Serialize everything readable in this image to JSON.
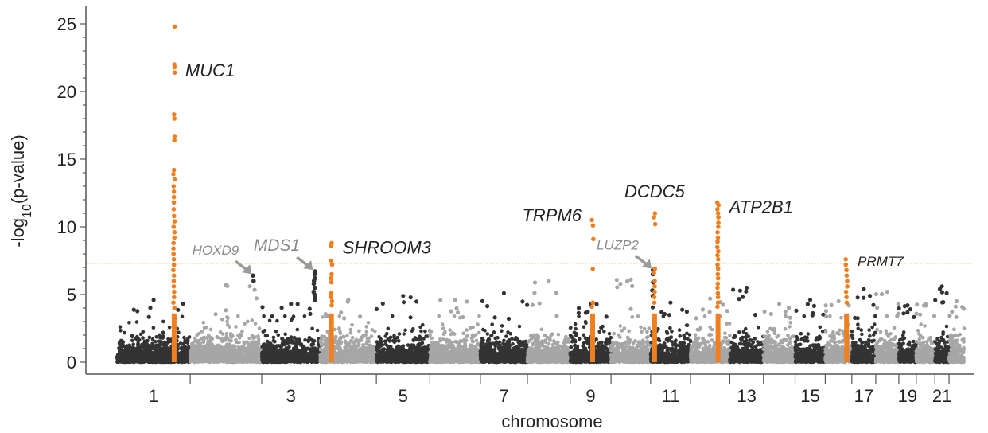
{
  "chart_data": {
    "type": "scatter",
    "subtype": "manhattan",
    "title": "",
    "xlabel": "chromosome",
    "ylabel": "-log10(p-value)",
    "ylabel_parts": {
      "pre": "-log",
      "sub": "10",
      "post": "(p-value)"
    },
    "ylim": [
      0,
      26
    ],
    "yticks": [
      {
        "value": 0,
        "label": "0"
      },
      {
        "value": 5,
        "label": "5"
      },
      {
        "value": 10,
        "label": "10"
      },
      {
        "value": 15,
        "label": "15"
      },
      {
        "value": 20,
        "label": "20"
      },
      {
        "value": 25,
        "label": "25"
      }
    ],
    "significance_threshold": 7.3,
    "grid": false,
    "legend": "none",
    "colors": {
      "dark": "#333333",
      "light": "#a6a6a6",
      "highlight": "#f07f20",
      "label_dark": "#222222",
      "label_gray": "#8c8c8c",
      "threshold": "#f2c98a",
      "axis": "#555555"
    },
    "chromosomes": [
      {
        "chr": 1,
        "label": "1",
        "peak": 4.6
      },
      {
        "chr": 2,
        "label": "",
        "peak": 5.7
      },
      {
        "chr": 3,
        "label": "3",
        "peak": 4.3
      },
      {
        "chr": 4,
        "label": "",
        "peak": 4.6
      },
      {
        "chr": 5,
        "label": "5",
        "peak": 4.9
      },
      {
        "chr": 6,
        "label": "",
        "peak": 4.6
      },
      {
        "chr": 7,
        "label": "7",
        "peak": 5.1
      },
      {
        "chr": 8,
        "label": "",
        "peak": 6.0
      },
      {
        "chr": 9,
        "label": "9",
        "peak": 4.3
      },
      {
        "chr": 10,
        "label": "",
        "peak": 6.1
      },
      {
        "chr": 11,
        "label": "11",
        "peak": 4.4
      },
      {
        "chr": 12,
        "label": "",
        "peak": 4.7
      },
      {
        "chr": 13,
        "label": "13",
        "peak": 5.5
      },
      {
        "chr": 14,
        "label": "",
        "peak": 4.3
      },
      {
        "chr": 15,
        "label": "15",
        "peak": 4.6
      },
      {
        "chr": 16,
        "label": "",
        "peak": 4.5
      },
      {
        "chr": 17,
        "label": "17",
        "peak": 5.4
      },
      {
        "chr": 18,
        "label": "",
        "peak": 5.2
      },
      {
        "chr": 19,
        "label": "19",
        "peak": 4.2
      },
      {
        "chr": 20,
        "label": "",
        "peak": 4.3
      },
      {
        "chr": 21,
        "label": "21",
        "peak": 5.6
      },
      {
        "chr": 22,
        "label": "",
        "peak": 4.5
      }
    ],
    "loci": [
      {
        "gene": "MUC1",
        "chr": 1,
        "pos": 0.78,
        "highlight": true,
        "values": [
          24.8,
          22.0,
          21.8,
          21.4,
          18.3,
          18.0,
          16.7,
          16.4,
          14.2,
          13.9,
          13.5,
          13.0,
          12.6,
          12.2,
          11.8,
          11.3,
          10.8,
          10.4,
          10.0,
          9.6,
          9.2,
          8.8,
          8.4,
          8.0,
          7.6,
          7.2,
          6.8,
          6.4,
          6.0,
          5.6,
          5.2,
          4.8,
          4.4,
          4.0
        ]
      },
      {
        "gene": "HOXD9",
        "chr": 2,
        "pos": 0.88,
        "highlight": false,
        "values": [
          6.4,
          6.0
        ]
      },
      {
        "gene": "MDS1",
        "chr": 3,
        "pos": 0.9,
        "highlight": false,
        "values": [
          6.7,
          6.5,
          6.2,
          6.0,
          5.8,
          5.5,
          5.2,
          5.0,
          4.8,
          4.6
        ]
      },
      {
        "gene": "SHROOM3",
        "chr": 4,
        "pos": 0.2,
        "highlight": true,
        "values": [
          8.8,
          8.6,
          7.5,
          7.2,
          6.5,
          6.2,
          5.9,
          5.1,
          4.8,
          4.5,
          4.2
        ]
      },
      {
        "gene": "TRPM6",
        "chr": 9,
        "pos": 0.55,
        "highlight": true,
        "values": [
          10.5,
          10.1,
          9.1,
          6.9,
          4.4,
          4.1
        ]
      },
      {
        "gene": "LUZP2",
        "chr": 11,
        "pos": 0.06,
        "highlight": false,
        "values": [
          6.8,
          6.5,
          5.9,
          5.3,
          4.9
        ]
      },
      {
        "gene": "DCDC5",
        "chr": 11,
        "pos": 0.1,
        "highlight": true,
        "values": [
          11.0,
          10.7,
          10.2,
          6.9,
          6.6,
          6.0,
          5.6,
          5.2,
          4.8,
          4.4
        ]
      },
      {
        "gene": "ATP2B1",
        "chr": 12,
        "pos": 0.7,
        "highlight": true,
        "values": [
          11.8,
          11.6,
          11.3,
          11.0,
          10.7,
          10.3,
          10.0,
          9.6,
          9.2,
          8.9,
          8.5,
          8.2,
          7.9,
          7.6,
          7.2,
          6.9,
          6.5,
          6.2,
          5.8,
          5.5,
          5.1,
          4.8,
          4.4,
          4.1
        ]
      },
      {
        "gene": "PRMT7",
        "chr": 16,
        "pos": 0.8,
        "highlight": true,
        "values": [
          7.6,
          7.2,
          6.8,
          6.4,
          6.0,
          5.6,
          5.2,
          4.8,
          4.4
        ]
      }
    ],
    "annotations": [
      {
        "id": "muc1",
        "text": "MUC1",
        "chr": 1,
        "pos": 0.78,
        "y": 21.6,
        "color": "label_dark",
        "size": 22,
        "arrow": false
      },
      {
        "id": "hoxd9",
        "text": "HOXD9",
        "chr": 2,
        "pos": 0.88,
        "y": 6.4,
        "color": "label_gray",
        "size": 17,
        "arrow": true
      },
      {
        "id": "mds1",
        "text": "MDS1",
        "chr": 3,
        "pos": 0.9,
        "y": 6.7,
        "color": "label_gray",
        "size": 21,
        "arrow": true
      },
      {
        "id": "shroom3",
        "text": "SHROOM3",
        "chr": 4,
        "pos": 0.2,
        "y": 8.5,
        "color": "label_dark",
        "size": 22,
        "arrow": false
      },
      {
        "id": "trpm6",
        "text": "TRPM6",
        "chr": 9,
        "pos": 0.55,
        "y": 10.4,
        "color": "label_dark",
        "size": 22,
        "arrow": false
      },
      {
        "id": "dcdc5",
        "text": "DCDC5",
        "chr": 11,
        "pos": 0.1,
        "y": 12.3,
        "color": "label_dark",
        "size": 22,
        "arrow": false
      },
      {
        "id": "luzp2",
        "text": "LUZP2",
        "chr": 11,
        "pos": 0.06,
        "y": 6.8,
        "color": "label_gray",
        "size": 17,
        "arrow": true
      },
      {
        "id": "atp2b1",
        "text": "ATP2B1",
        "chr": 12,
        "pos": 0.7,
        "y": 11.5,
        "color": "label_dark",
        "size": 22,
        "arrow": false
      },
      {
        "id": "prmt7",
        "text": "PRMT7",
        "chr": 16,
        "pos": 0.8,
        "y": 7.6,
        "color": "label_dark",
        "size": 17,
        "arrow": false
      }
    ]
  }
}
